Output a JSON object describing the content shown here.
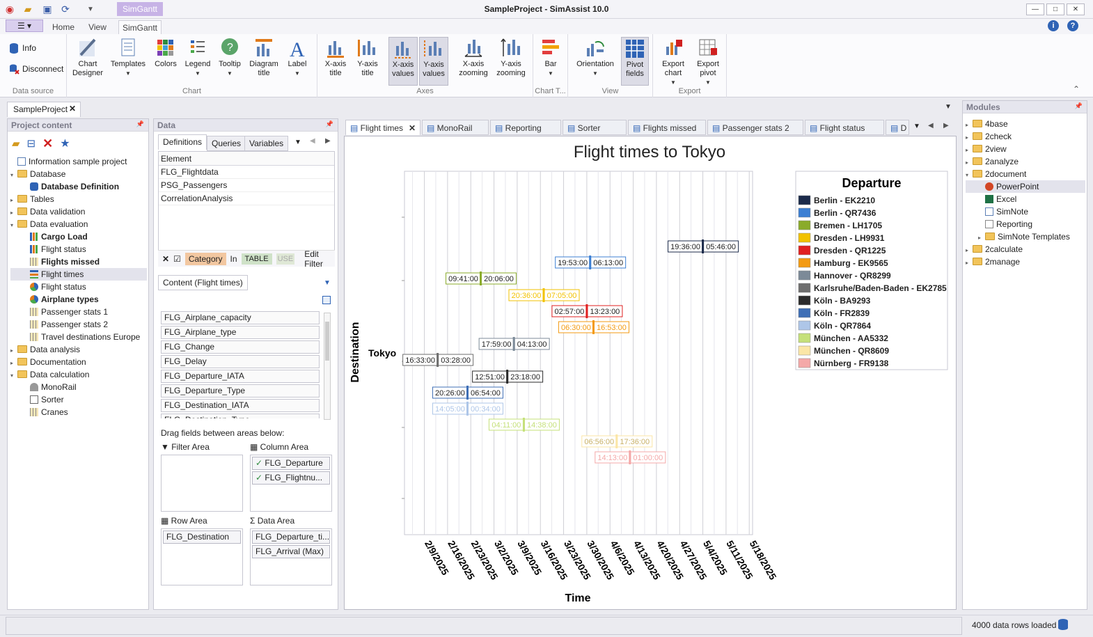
{
  "app": {
    "title": "SampleProject - SimAssist 10.0",
    "context_tab": "SimGantt"
  },
  "ribbon_tabs": [
    "Home",
    "View",
    "SimGantt"
  ],
  "ribbon": {
    "data_source": {
      "label": "Data source",
      "info": "Info",
      "disconnect": "Disconnect"
    },
    "chart": {
      "label": "Chart",
      "buttons": [
        "Chart Designer",
        "Templates",
        "Colors",
        "Legend",
        "Tooltip",
        "Diagram title",
        "Label"
      ]
    },
    "axes": {
      "label": "Axes",
      "buttons": [
        "X-axis title",
        "Y-axis title",
        "X-axis values",
        "Y-axis values",
        "X-axis zooming",
        "Y-axis zooming"
      ]
    },
    "chart_type": {
      "label": "Chart T...",
      "buttons": [
        "Bar"
      ]
    },
    "view": {
      "label": "View",
      "buttons": [
        "Orientation",
        "Pivot fields"
      ]
    },
    "export": {
      "label": "Export",
      "buttons": [
        "Export chart",
        "Export pivot"
      ]
    }
  },
  "doc_tab": "SampleProject",
  "project": {
    "header": "Project content",
    "items": [
      {
        "label": "Information sample project",
        "icon": "doc-icon",
        "indent": 1,
        "bold": false,
        "tw": ""
      },
      {
        "label": "Database",
        "icon": "folder-icon",
        "indent": 1,
        "bold": false,
        "tw": "▾"
      },
      {
        "label": "Database Definition",
        "icon": "database-icon",
        "indent": 2,
        "bold": true,
        "tw": ""
      },
      {
        "label": "Tables",
        "icon": "folder-icon",
        "indent": 1,
        "bold": false,
        "tw": "▸"
      },
      {
        "label": "Data validation",
        "icon": "folder-icon",
        "indent": 1,
        "bold": false,
        "tw": "▸"
      },
      {
        "label": "Data evaluation",
        "icon": "folder-icon",
        "indent": 1,
        "bold": false,
        "tw": "▾"
      },
      {
        "label": "Cargo Load",
        "icon": "bar-chart-icon",
        "indent": 2,
        "bold": true,
        "tw": ""
      },
      {
        "label": "Flight status",
        "icon": "bar-chart-icon",
        "indent": 2,
        "bold": false,
        "tw": ""
      },
      {
        "label": "Flights missed",
        "icon": "grid-icon",
        "indent": 2,
        "bold": true,
        "tw": ""
      },
      {
        "label": "Flight times",
        "icon": "gantt-icon",
        "indent": 2,
        "bold": false,
        "tw": "",
        "selected": true
      },
      {
        "label": "Flight status",
        "icon": "pie-chart-icon",
        "indent": 2,
        "bold": false,
        "tw": ""
      },
      {
        "label": "Airplane types",
        "icon": "pie-chart-icon",
        "indent": 2,
        "bold": true,
        "tw": ""
      },
      {
        "label": "Passenger stats 1",
        "icon": "grid-icon",
        "indent": 2,
        "bold": false,
        "tw": ""
      },
      {
        "label": "Passenger stats 2",
        "icon": "grid-icon",
        "indent": 2,
        "bold": false,
        "tw": ""
      },
      {
        "label": "Travel destinations Europe",
        "icon": "grid-icon",
        "indent": 2,
        "bold": false,
        "tw": ""
      },
      {
        "label": "Data analysis",
        "icon": "folder-icon",
        "indent": 1,
        "bold": false,
        "tw": "▸"
      },
      {
        "label": "Documentation",
        "icon": "folder-icon",
        "indent": 1,
        "bold": false,
        "tw": "▸"
      },
      {
        "label": "Data calculation",
        "icon": "folder-icon",
        "indent": 1,
        "bold": false,
        "tw": "▾"
      },
      {
        "label": "MonoRail",
        "icon": "gauge-icon",
        "indent": 2,
        "bold": false,
        "tw": ""
      },
      {
        "label": "Sorter",
        "icon": "sorter-icon",
        "indent": 2,
        "bold": false,
        "tw": ""
      },
      {
        "label": "Cranes",
        "icon": "grid-icon",
        "indent": 2,
        "bold": false,
        "tw": ""
      }
    ]
  },
  "data": {
    "header": "Data",
    "tabs": [
      "Definitions",
      "Queries",
      "Variables"
    ],
    "element_header": "Element",
    "elements": [
      "FLG_Flightdata",
      "PSG_Passengers",
      "CorrelationAnalysis"
    ],
    "filter": {
      "category": "Category",
      "in": "In",
      "table": "TABLE",
      "user": "USE",
      "edit": "Edit Filter"
    },
    "content_tab": "Content (Flight times)",
    "fields": [
      "FLG_Airplane_capacity",
      "FLG_Airplane_type",
      "FLG_Change",
      "FLG_Delay",
      "FLG_Departure_IATA",
      "FLG_Departure_Type",
      "FLG_Destination_IATA",
      "FLG_Destination_Type"
    ],
    "drag_hint": "Drag fields between areas below:",
    "filter_area": "Filter Area",
    "column_area": "Column Area",
    "column_chips": [
      "FLG_Departure",
      "FLG_Flightnu..."
    ],
    "row_area": "Row Area",
    "row_chips": [
      "FLG_Destination"
    ],
    "data_area": "Data Area",
    "data_chips": [
      "FLG_Departure_ti...",
      "FLG_Arrival (Max)"
    ]
  },
  "doc_tabs": [
    "Flight times",
    "MonoRail",
    "Reporting",
    "Sorter",
    "Flights missed",
    "Passenger stats 2",
    "Flight status",
    "D"
  ],
  "chart_data": {
    "type": "gantt",
    "title": "Flight times to Tokyo",
    "xlabel": "Time",
    "ylabel": "Destination",
    "category": "Tokyo",
    "x_ticks": [
      "2/9/2025",
      "2/16/2025",
      "2/23/2025",
      "3/2/2025",
      "3/9/2025",
      "3/16/2025",
      "3/23/2025",
      "3/30/2025",
      "4/6/2025",
      "4/13/2025",
      "4/20/2025",
      "4/27/2025",
      "5/4/2025",
      "5/11/2025",
      "5/18/2025"
    ],
    "xlim": [
      "2025-02-03",
      "2025-05-19"
    ],
    "legend_title": "Departure",
    "legend_position": "right",
    "series": [
      {
        "name": "Berlin - EK2210",
        "color": "#1b2a4a",
        "start": "2025-05-04",
        "start_label": "19:36:00",
        "end_label": "05:46:00"
      },
      {
        "name": "Berlin - QR7436",
        "color": "#3c7fd3",
        "start": "2025-03-31",
        "start_label": "19:53:00",
        "end_label": "06:13:00"
      },
      {
        "name": "Bremen - LH1705",
        "color": "#8aab2a",
        "start": "2025-02-26",
        "start_label": "09:41:00",
        "end_label": "20:06:00"
      },
      {
        "name": "Dresden - LH9931",
        "color": "#f2c200",
        "start": "2025-03-17",
        "start_label": "20:36:00",
        "end_label": "07:05:00"
      },
      {
        "name": "Dresden - QR1225",
        "color": "#e02020",
        "start": "2025-03-30",
        "start_label": "02:57:00",
        "end_label": "13:23:00"
      },
      {
        "name": "Hamburg - EK9565",
        "color": "#f39a12",
        "start": "2025-04-01",
        "start_label": "06:30:00",
        "end_label": "16:53:00"
      },
      {
        "name": "Hannover - QR8299",
        "color": "#7c8a98",
        "start": "2025-03-08",
        "start_label": "17:59:00",
        "end_label": "04:13:00"
      },
      {
        "name": "Karlsruhe/Baden-Baden - EK2785",
        "color": "#6e6e6e",
        "start": "2025-02-13",
        "start_label": "16:33:00",
        "end_label": "03:28:00"
      },
      {
        "name": "Köln - BA9293",
        "color": "#2b2b2b",
        "start": "2025-03-06",
        "start_label": "12:51:00",
        "end_label": "23:18:00"
      },
      {
        "name": "Köln - FR2839",
        "color": "#3f6fb6",
        "start": "2025-02-22",
        "start_label": "20:26:00",
        "end_label": "06:54:00"
      },
      {
        "name": "Köln - QR7864",
        "color": "#aec6e8",
        "start": "2025-02-22",
        "start_label": "14:05:00",
        "end_label": "00:34:00"
      },
      {
        "name": "München - AA5332",
        "color": "#c5e07a",
        "start": "2025-03-11",
        "start_label": "04:11:00",
        "end_label": "14:38:00"
      },
      {
        "name": "München - QR8609",
        "color": "#fbe6a6",
        "start": "2025-04-08",
        "start_label": "06:56:00",
        "end_label": "17:36:00"
      },
      {
        "name": "Nürnberg - FR9138",
        "color": "#f4a8a8",
        "start": "2025-04-12",
        "start_label": "14:13:00",
        "end_label": "01:00:00"
      }
    ]
  },
  "modules": {
    "header": "Modules",
    "items": [
      {
        "label": "4base",
        "icon": "folder-icon",
        "indent": 1,
        "tw": "▸"
      },
      {
        "label": "2check",
        "icon": "folder-icon",
        "indent": 1,
        "tw": "▸"
      },
      {
        "label": "2view",
        "icon": "folder-icon",
        "indent": 1,
        "tw": "▸"
      },
      {
        "label": "2analyze",
        "icon": "folder-icon",
        "indent": 1,
        "tw": "▸"
      },
      {
        "label": "2document",
        "icon": "folder-icon",
        "indent": 1,
        "tw": "▾"
      },
      {
        "label": "PowerPoint",
        "icon": "powerpoint-icon",
        "indent": 2,
        "tw": "",
        "selected": true
      },
      {
        "label": "Excel",
        "icon": "excel-icon",
        "indent": 2,
        "tw": ""
      },
      {
        "label": "SimNote",
        "icon": "note-icon",
        "indent": 2,
        "tw": ""
      },
      {
        "label": "Reporting",
        "icon": "report-icon",
        "indent": 2,
        "tw": ""
      },
      {
        "label": "SimNote Templates",
        "icon": "folder-icon",
        "indent": 2,
        "tw": "▸"
      },
      {
        "label": "2calculate",
        "icon": "folder-icon",
        "indent": 1,
        "tw": "▸"
      },
      {
        "label": "2manage",
        "icon": "folder-icon",
        "indent": 1,
        "tw": "▸"
      }
    ]
  },
  "status": {
    "rows": "4000 data rows loaded"
  }
}
